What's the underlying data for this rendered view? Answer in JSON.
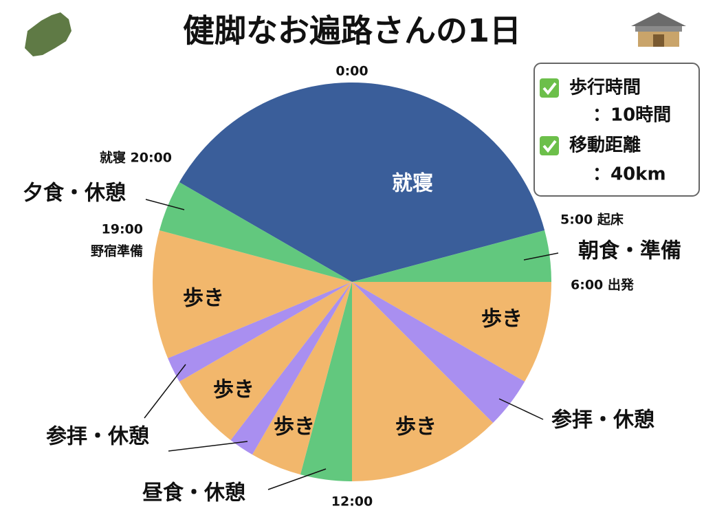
{
  "chart_data": {
    "type": "pie",
    "title": "健脚なお遍路さんの1日",
    "categories": [
      "就寝",
      "朝食・準備",
      "歩き",
      "参拝・休憩",
      "歩き",
      "昼食・休憩",
      "歩き",
      "参拝・休憩",
      "歩き",
      null,
      "歩き",
      "夕食・休憩"
    ],
    "values": [
      9,
      1,
      2,
      1,
      3,
      1,
      1,
      0.5,
      1.5,
      0.5,
      2.5,
      1
    ],
    "colors": [
      "#3a5e9a",
      "#62c87e",
      "#f2b76c",
      "#a98ff0",
      "#f2b76c",
      "#62c87e",
      "#f2b76c",
      "#a98ff0",
      "#f2b76c",
      "#a98ff0",
      "#f2b76c",
      "#62c87e"
    ],
    "start_angle": 300,
    "annotations": [
      "0:00",
      "就寝 20:00",
      "19:00",
      "野宿準備",
      "5:00 起床",
      "6:00 出発",
      "12:00"
    ],
    "info": [
      "歩行時間",
      "：10時間",
      "移動距離",
      "：40km"
    ]
  }
}
